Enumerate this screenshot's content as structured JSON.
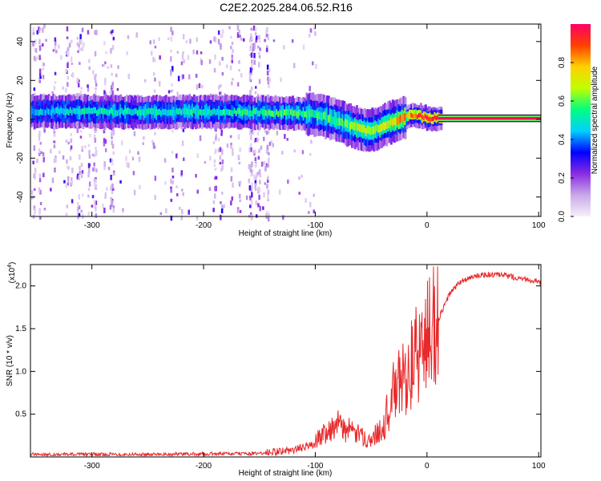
{
  "figure_title": "C2E2.2025.284.06.52.R16",
  "chart_data": [
    {
      "type": "heatmap",
      "title": "C2E2.2025.284.06.52.R16",
      "xlabel": "Height of straight line (km)",
      "ylabel": "Frequency (Hz)",
      "xlim": [
        -355,
        102
      ],
      "ylim": [
        -50,
        49
      ],
      "x_ticks": [
        -300,
        -200,
        -100,
        0,
        100
      ],
      "y_ticks": [
        -40,
        -20,
        0,
        20,
        40
      ],
      "colorbar": {
        "label": "Normalized spectral amplitude",
        "range": [
          0,
          1
        ],
        "ticks": [
          "0.0",
          "0.2",
          "0.4",
          "0.6",
          "0.8"
        ],
        "tick_values": [
          0.0,
          0.2,
          0.4,
          0.6,
          0.8
        ],
        "colors": [
          "#f5f0fb",
          "#c9a8e8",
          "#8a2be2",
          "#0000ff",
          "#00d0ff",
          "#00ff80",
          "#c0ff00",
          "#ffd000",
          "#ff4000",
          "#ff0066"
        ]
      },
      "ridge": {
        "x": [
          -355,
          -300,
          -250,
          -200,
          -150,
          -110,
          -90,
          -70,
          -55,
          -45,
          -35,
          -25,
          -15,
          -8,
          0,
          10,
          102
        ],
        "freq": [
          4,
          4,
          3.5,
          4,
          3.5,
          3,
          1,
          -3,
          -6,
          -5,
          -2,
          0,
          2,
          2,
          0.5,
          0.5,
          0.5
        ],
        "amplitude": [
          0.45,
          0.5,
          0.5,
          0.5,
          0.55,
          0.55,
          0.55,
          0.6,
          0.7,
          0.65,
          0.7,
          0.8,
          0.85,
          0.9,
          0.95,
          0.97,
          0.98
        ]
      },
      "noise_region_x": [
        -355,
        -140
      ]
    },
    {
      "type": "line",
      "xlabel": "Height of straight line (km)",
      "ylabel": "SNR (10 * v/v)",
      "y_scale_label": "(x10",
      "y_scale_exponent": "4",
      "xlim": [
        -355,
        102
      ],
      "ylim": [
        0,
        22500
      ],
      "x_ticks": [
        -300,
        -200,
        -100,
        0,
        100
      ],
      "y_ticks": [
        5000,
        10000,
        15000,
        20000
      ],
      "y_tick_labels": [
        "0.5",
        "1.0",
        "1.5",
        "2.0"
      ],
      "series": [
        {
          "name": "SNR",
          "color": "#e8292b",
          "x": [
            -355,
            -250,
            -150,
            -120,
            -100,
            -90,
            -80,
            -70,
            -60,
            -50,
            -40,
            -30,
            -20,
            -10,
            0,
            10,
            20,
            30,
            40,
            50,
            60,
            70,
            80,
            90,
            102
          ],
          "y": [
            300,
            300,
            400,
            800,
            1500,
            2500,
            3000,
            2500,
            2000,
            1500,
            3000,
            7000,
            9000,
            11000,
            13000,
            16000,
            19000,
            20500,
            21000,
            21300,
            21300,
            21200,
            21000,
            20800,
            20300
          ]
        }
      ]
    }
  ]
}
